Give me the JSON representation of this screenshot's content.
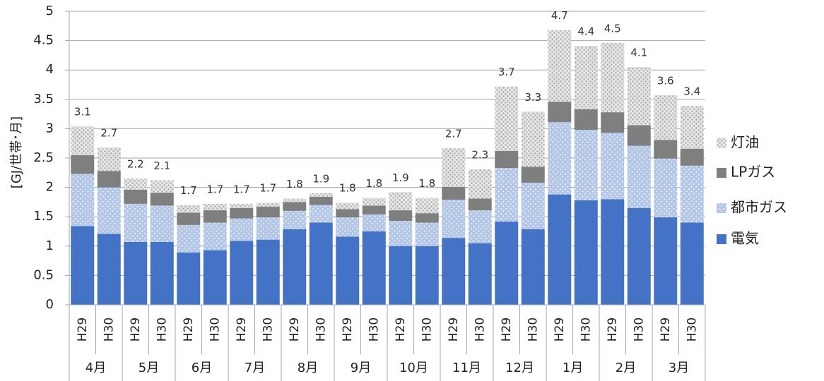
{
  "chart_data": {
    "type": "bar",
    "stacked": true,
    "title": "",
    "xlabel": "",
    "ylabel": "[GJ/世帯･月]",
    "ylim": [
      0,
      5
    ],
    "yticks": [
      "0",
      "0.5",
      "1",
      "1.5",
      "2",
      "2.5",
      "3",
      "3.5",
      "4",
      "4.5",
      "5"
    ],
    "grid": true,
    "legend_position": "right",
    "categories": [
      "H29",
      "H30",
      "H29",
      "H30",
      "H29",
      "H30",
      "H29",
      "H30",
      "H29",
      "H30",
      "H29",
      "H30",
      "H29",
      "H30",
      "H29",
      "H30",
      "H29",
      "H30",
      "H29",
      "H30",
      "H29",
      "H30",
      "H29",
      "H30"
    ],
    "groups": [
      "4月",
      "5月",
      "6月",
      "7月",
      "8月",
      "9月",
      "10月",
      "11月",
      "12月",
      "1月",
      "2月",
      "3月"
    ],
    "series": [
      {
        "name": "電気",
        "color": "#4472C4",
        "pattern": "solid",
        "values": [
          1.34,
          1.21,
          1.07,
          1.07,
          0.89,
          0.93,
          1.09,
          1.11,
          1.29,
          1.4,
          1.16,
          1.25,
          1.0,
          1.0,
          1.14,
          1.05,
          1.42,
          1.29,
          1.88,
          1.78,
          1.8,
          1.65,
          1.49,
          1.4
        ]
      },
      {
        "name": "都市ガス",
        "color": "#B4C7E7",
        "pattern": "dots-white",
        "values": [
          0.89,
          0.79,
          0.65,
          0.62,
          0.47,
          0.47,
          0.38,
          0.38,
          0.31,
          0.3,
          0.33,
          0.29,
          0.43,
          0.4,
          0.65,
          0.56,
          0.91,
          0.79,
          1.23,
          1.2,
          1.13,
          1.06,
          1.0,
          0.97
        ]
      },
      {
        "name": "LPガス",
        "color": "#7F7F7F",
        "pattern": "solid",
        "values": [
          0.32,
          0.28,
          0.24,
          0.22,
          0.21,
          0.21,
          0.18,
          0.18,
          0.15,
          0.14,
          0.14,
          0.15,
          0.18,
          0.16,
          0.22,
          0.2,
          0.29,
          0.27,
          0.35,
          0.35,
          0.35,
          0.35,
          0.32,
          0.29
        ]
      },
      {
        "name": "灯油",
        "color": "#D0D0D0",
        "pattern": "dots-gray",
        "values": [
          0.49,
          0.4,
          0.19,
          0.21,
          0.13,
          0.11,
          0.07,
          0.07,
          0.06,
          0.06,
          0.11,
          0.13,
          0.31,
          0.26,
          0.66,
          0.5,
          1.1,
          0.94,
          1.22,
          1.08,
          1.18,
          0.99,
          0.76,
          0.73
        ]
      }
    ],
    "totals": [
      "3.1",
      "2.7",
      "2.2",
      "2.1",
      "1.7",
      "1.7",
      "1.7",
      "1.7",
      "1.8",
      "1.9",
      "1.8",
      "1.8",
      "1.9",
      "1.8",
      "2.7",
      "2.3",
      "3.7",
      "3.3",
      "4.7",
      "4.4",
      "4.5",
      "4.1",
      "3.6",
      "3.4"
    ]
  }
}
